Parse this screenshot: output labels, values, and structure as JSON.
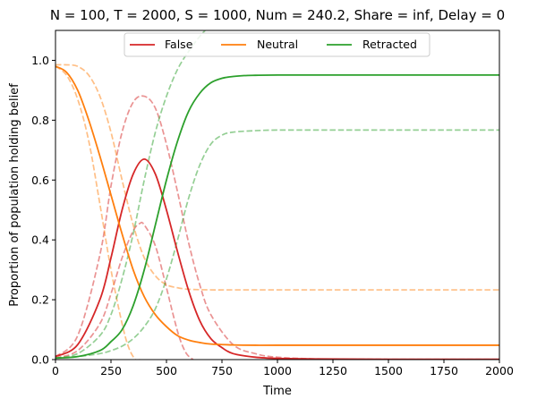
{
  "chart_data": {
    "type": "line",
    "title": "N = 100, T = 2000, S = 1000, Num = 240.2, Share = inf, Delay = 0",
    "xlabel": "Time",
    "ylabel": "Proportion of population holding belief",
    "xlim": [
      0,
      2000
    ],
    "ylim": [
      0,
      1.1
    ],
    "xticks": [
      0,
      250,
      500,
      750,
      1000,
      1250,
      1500,
      1750,
      2000
    ],
    "yticks": [
      0.0,
      0.2,
      0.4,
      0.6,
      0.8,
      1.0
    ],
    "xtick_labels": [
      "0",
      "250",
      "500",
      "750",
      "1000",
      "1250",
      "1500",
      "1750",
      "2000"
    ],
    "ytick_labels": [
      "0.0",
      "0.2",
      "0.4",
      "0.6",
      "0.8",
      "1.0"
    ],
    "grid": false,
    "legend_position": "top-center",
    "colors": {
      "False": "#d62728",
      "Neutral": "#ff7f0e",
      "Retracted": "#2ca02c"
    },
    "series": [
      {
        "name": "False",
        "style": "solid",
        "color": "#d62728",
        "x": [
          0,
          100,
          200,
          250,
          300,
          350,
          400,
          450,
          500,
          550,
          600,
          650,
          700,
          750,
          800,
          900,
          1000,
          1200,
          1500,
          2000
        ],
        "y": [
          0.01,
          0.05,
          0.2,
          0.34,
          0.5,
          0.62,
          0.67,
          0.62,
          0.5,
          0.36,
          0.23,
          0.13,
          0.07,
          0.04,
          0.02,
          0.008,
          0.004,
          0.002,
          0.001,
          0.001
        ]
      },
      {
        "name": "Neutral",
        "style": "solid",
        "color": "#ff7f0e",
        "x": [
          0,
          50,
          100,
          150,
          200,
          250,
          300,
          350,
          400,
          450,
          500,
          550,
          600,
          650,
          700,
          800,
          900,
          1000,
          1500,
          2000
        ],
        "y": [
          0.98,
          0.96,
          0.9,
          0.8,
          0.68,
          0.55,
          0.42,
          0.3,
          0.21,
          0.15,
          0.11,
          0.08,
          0.065,
          0.057,
          0.052,
          0.049,
          0.048,
          0.048,
          0.048,
          0.048
        ]
      },
      {
        "name": "Retracted",
        "style": "solid",
        "color": "#2ca02c",
        "x": [
          0,
          100,
          200,
          250,
          300,
          350,
          400,
          450,
          500,
          550,
          600,
          650,
          700,
          750,
          800,
          850,
          900,
          1000,
          1200,
          1500,
          2000
        ],
        "y": [
          0.005,
          0.01,
          0.03,
          0.06,
          0.1,
          0.18,
          0.3,
          0.45,
          0.6,
          0.73,
          0.83,
          0.89,
          0.925,
          0.94,
          0.946,
          0.949,
          0.95,
          0.951,
          0.951,
          0.951,
          0.951
        ]
      },
      {
        "name": "",
        "style": "dashed",
        "color": "#d62728",
        "x": [
          0,
          100,
          200,
          250,
          300,
          350,
          400,
          450,
          500,
          550,
          600,
          650,
          700,
          800,
          900,
          1000,
          1200,
          1500,
          2000
        ],
        "y": [
          0.01,
          0.08,
          0.35,
          0.58,
          0.76,
          0.86,
          0.88,
          0.84,
          0.72,
          0.56,
          0.39,
          0.25,
          0.15,
          0.05,
          0.02,
          0.008,
          0.002,
          0.001,
          0.001
        ]
      },
      {
        "name": "",
        "style": "dashed",
        "color": "#d62728",
        "x": [
          0,
          100,
          200,
          250,
          300,
          350,
          380,
          400,
          450,
          500,
          530,
          560,
          590,
          620
        ],
        "y": [
          0.005,
          0.03,
          0.12,
          0.22,
          0.34,
          0.43,
          0.455,
          0.45,
          0.38,
          0.24,
          0.15,
          0.07,
          0.02,
          0.0
        ]
      },
      {
        "name": "",
        "style": "dashed",
        "color": "#ff7f0e",
        "x": [
          0,
          50,
          100,
          150,
          200,
          250,
          300,
          350,
          400,
          450,
          500,
          550,
          600,
          700,
          800,
          1000,
          1500,
          2000
        ],
        "y": [
          0.985,
          0.985,
          0.98,
          0.95,
          0.88,
          0.76,
          0.6,
          0.45,
          0.34,
          0.28,
          0.25,
          0.24,
          0.235,
          0.233,
          0.233,
          0.233,
          0.233,
          0.233
        ]
      },
      {
        "name": "",
        "style": "dashed",
        "color": "#ff7f0e",
        "x": [
          0,
          50,
          100,
          150,
          200,
          250,
          300,
          330,
          360,
          380
        ],
        "y": [
          0.98,
          0.95,
          0.87,
          0.73,
          0.52,
          0.3,
          0.12,
          0.04,
          0.0,
          0.0
        ]
      },
      {
        "name": "",
        "style": "dashed",
        "color": "#2ca02c",
        "x": [
          0,
          100,
          200,
          250,
          300,
          350,
          400,
          450,
          500,
          550,
          600,
          650,
          700,
          750,
          800,
          900,
          1000,
          1200,
          1500,
          2000
        ],
        "y": [
          0.005,
          0.01,
          0.02,
          0.03,
          0.045,
          0.07,
          0.11,
          0.17,
          0.27,
          0.4,
          0.54,
          0.65,
          0.72,
          0.75,
          0.76,
          0.765,
          0.767,
          0.767,
          0.767,
          0.767
        ]
      },
      {
        "name": "",
        "style": "dashed",
        "color": "#2ca02c",
        "x": [
          0,
          100,
          200,
          250,
          300,
          350,
          400,
          450,
          500,
          550,
          600,
          650,
          700
        ],
        "y": [
          0.005,
          0.02,
          0.08,
          0.15,
          0.27,
          0.42,
          0.6,
          0.76,
          0.88,
          0.97,
          1.03,
          1.08,
          1.12
        ]
      }
    ]
  }
}
